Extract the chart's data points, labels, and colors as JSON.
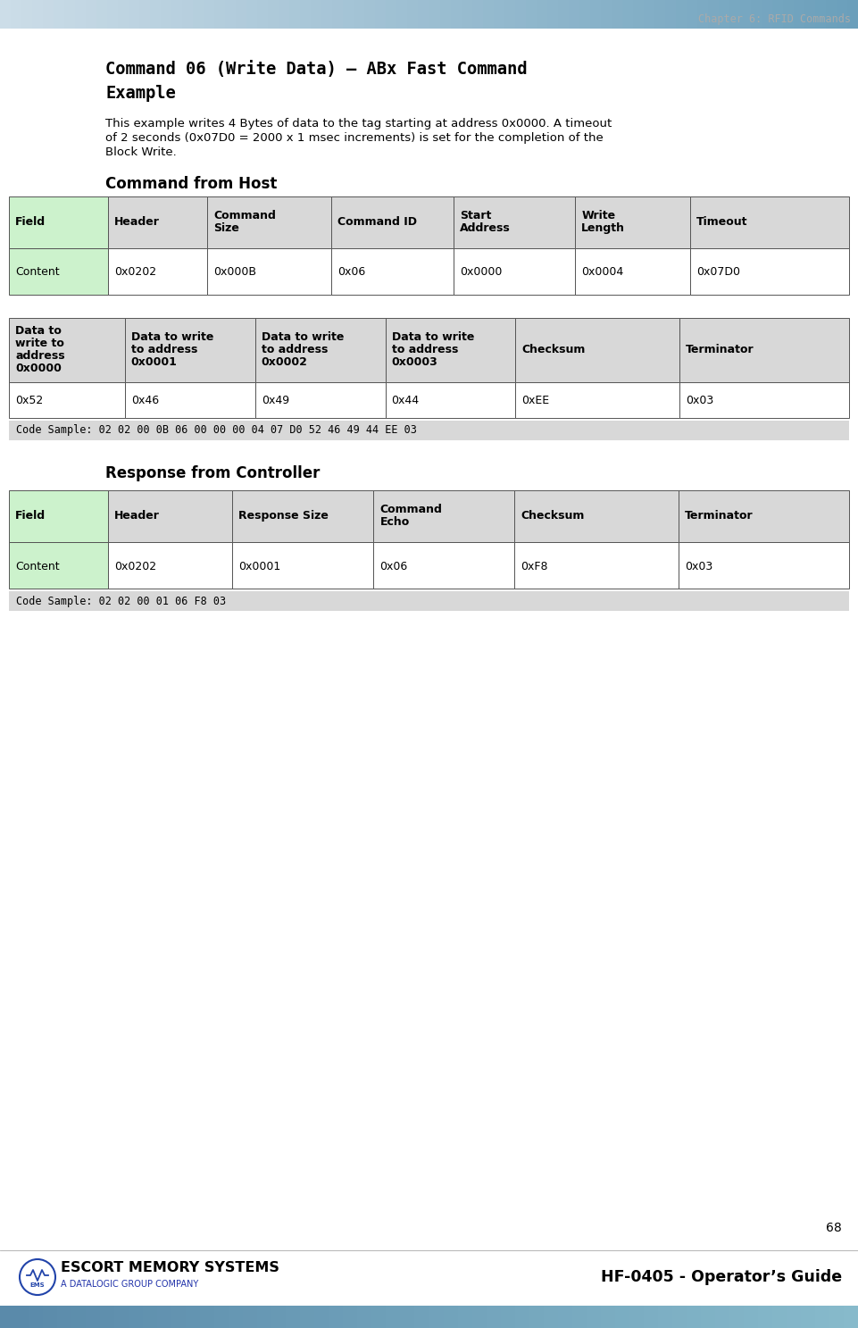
{
  "page_title": "Chapter 6: RFID Commands",
  "section_title_line1": "Command 06 (Write Data) – ABx Fast Command",
  "section_title_line2": "Example",
  "desc_line1": "This example writes 4 Bytes of data to the tag starting at address 0x0000. A timeout",
  "desc_line2": "of 2 seconds (0x07D0 = 2000 x 1 msec increments) is set for the completion of the",
  "desc_line3": "Block Write.",
  "cmd_from_host_title": "Command from Host",
  "table1_headers": [
    "Field",
    "Header",
    "Command\nSize",
    "Command ID",
    "Start\nAddress",
    "Write\nLength",
    "Timeout"
  ],
  "table1_row1": [
    "Content",
    "0x0202",
    "0x000B",
    "0x06",
    "0x0000",
    "0x0004",
    "0x07D0"
  ],
  "table2_headers": [
    "Data to\nwrite to\naddress\n0x0000",
    "Data to write\nto address\n0x0001",
    "Data to write\nto address\n0x0002",
    "Data to write\nto address\n0x0003",
    "Checksum",
    "Terminator"
  ],
  "table2_row1": [
    "0x52",
    "0x46",
    "0x49",
    "0x44",
    "0xEE",
    "0x03"
  ],
  "code_sample1": "Code Sample: 02 02 00 0B 06 00 00 00 04 07 D0 52 46 49 44 EE 03",
  "response_title": "Response from Controller",
  "table3_headers": [
    "Field",
    "Header",
    "Response Size",
    "Command\nEcho",
    "Checksum",
    "Terminator"
  ],
  "table3_row1": [
    "Content",
    "0x0202",
    "0x0001",
    "0x06",
    "0xF8",
    "0x03"
  ],
  "code_sample2": "Code Sample: 02 02 00 01 06 F8 03",
  "page_number": "68",
  "footer_company": "ESCORT MEMORY SYSTEMS",
  "footer_sub": "A DATALOGIC GROUP COMPANY",
  "footer_right": "HF-0405 - Operator’s Guide",
  "header_bar_color": "#8bbcce",
  "header_text_color": "#aaaaaa",
  "table_header_bg": "#d8d8d8",
  "table_field_bg": "#ccf2cc",
  "table_content_bg": "#ffffff",
  "code_sample_bg": "#d8d8d8",
  "border_color": "#555555",
  "title_font_color": "#000000",
  "section_title_color": "#000000"
}
